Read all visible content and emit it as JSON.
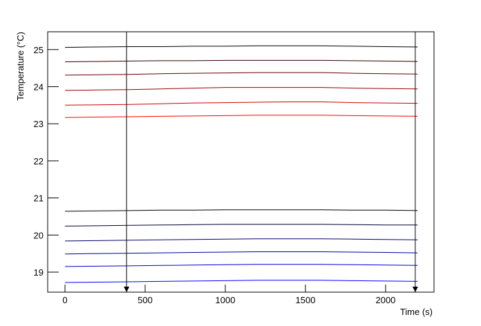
{
  "chart_data": {
    "type": "line",
    "xlabel": "Time (s)",
    "ylabel": "Temperature (°C)",
    "xlim": [
      -108,
      2302
    ],
    "ylim": [
      18.46,
      25.48
    ],
    "xticks": [
      0,
      500,
      1000,
      1500,
      2000
    ],
    "yticks": [
      19,
      20,
      21,
      22,
      23,
      24,
      25
    ],
    "markers": [
      384,
      2185
    ],
    "marker_color": "#000000",
    "x": [
      0,
      200,
      400,
      600,
      800,
      1000,
      1200,
      1400,
      1600,
      1800,
      2000,
      2200
    ],
    "series": [
      {
        "color": "#000000",
        "values": [
          25.06,
          25.07,
          25.08,
          25.08,
          25.09,
          25.09,
          25.1,
          25.1,
          25.1,
          25.09,
          25.08,
          25.07
        ]
      },
      {
        "color": "#330000",
        "values": [
          24.67,
          24.68,
          24.69,
          24.7,
          24.7,
          24.71,
          24.71,
          24.71,
          24.71,
          24.7,
          24.69,
          24.68
        ]
      },
      {
        "color": "#660000",
        "values": [
          24.31,
          24.32,
          24.33,
          24.35,
          24.36,
          24.37,
          24.38,
          24.38,
          24.38,
          24.36,
          24.35,
          24.34
        ]
      },
      {
        "color": "#990000",
        "values": [
          23.9,
          23.91,
          23.92,
          23.94,
          23.96,
          23.98,
          23.98,
          23.98,
          23.98,
          23.96,
          23.95,
          23.94
        ]
      },
      {
        "color": "#cc0000",
        "values": [
          23.5,
          23.51,
          23.52,
          23.54,
          23.56,
          23.57,
          23.58,
          23.59,
          23.59,
          23.57,
          23.56,
          23.55
        ]
      },
      {
        "color": "#ff0000",
        "values": [
          23.17,
          23.18,
          23.19,
          23.2,
          23.21,
          23.22,
          23.23,
          23.23,
          23.23,
          23.22,
          23.21,
          23.2
        ]
      },
      {
        "color": "#000000",
        "values": [
          20.64,
          20.65,
          20.66,
          20.67,
          20.67,
          20.68,
          20.68,
          20.68,
          20.68,
          20.67,
          20.67,
          20.66
        ]
      },
      {
        "color": "#000033",
        "values": [
          20.24,
          20.25,
          20.26,
          20.27,
          20.28,
          20.29,
          20.29,
          20.29,
          20.29,
          20.28,
          20.27,
          20.27
        ]
      },
      {
        "color": "#000066",
        "values": [
          19.84,
          19.85,
          19.86,
          19.87,
          19.88,
          19.89,
          19.9,
          19.9,
          19.9,
          19.89,
          19.88,
          19.87
        ]
      },
      {
        "color": "#000099",
        "values": [
          19.49,
          19.5,
          19.51,
          19.52,
          19.53,
          19.54,
          19.55,
          19.55,
          19.55,
          19.54,
          19.53,
          19.52
        ]
      },
      {
        "color": "#0000cc",
        "values": [
          19.15,
          19.16,
          19.17,
          19.18,
          19.19,
          19.2,
          19.21,
          19.21,
          19.21,
          19.2,
          19.19,
          19.18
        ]
      },
      {
        "color": "#0000ff",
        "values": [
          18.72,
          18.73,
          18.74,
          18.75,
          18.76,
          18.77,
          18.78,
          18.78,
          18.78,
          18.77,
          18.76,
          18.75
        ]
      }
    ]
  }
}
